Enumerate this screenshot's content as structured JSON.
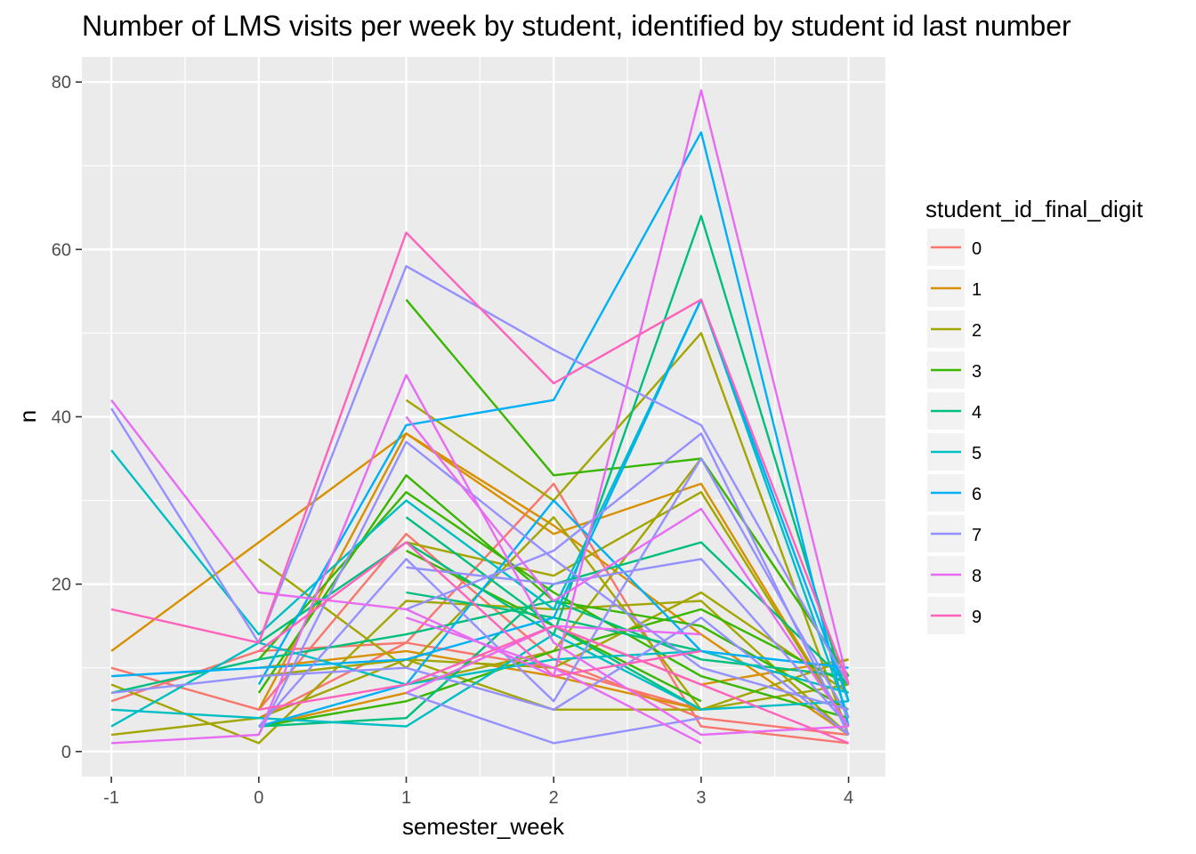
{
  "chart_data": {
    "type": "line",
    "title": "Number of LMS visits per week by student, identified by student id last number",
    "xlabel": "semester_week",
    "ylabel": "n",
    "xlim": [
      -1.2,
      4.25
    ],
    "ylim": [
      -3,
      83
    ],
    "x_ticks": [
      -1,
      0,
      1,
      2,
      3,
      4
    ],
    "y_ticks": [
      0,
      20,
      40,
      60,
      80
    ],
    "grid": true,
    "background": "#ebebeb",
    "legend": {
      "title": "student_id_final_digit",
      "position": "right"
    },
    "colors": {
      "0": "#F8766D",
      "1": "#D89000",
      "2": "#A3A500",
      "3": "#39B600",
      "4": "#00BF7D",
      "5": "#00BFC4",
      "6": "#00B0F6",
      "7": "#9590FF",
      "8": "#E76BF3",
      "9": "#FF62BC"
    },
    "series": [
      {
        "name": "0",
        "x": [
          -1,
          0,
          1,
          2,
          3,
          4
        ],
        "y": [
          10,
          5,
          26,
          11,
          4,
          2
        ]
      },
      {
        "name": "0",
        "x": [
          -1,
          0,
          1,
          2,
          3,
          4
        ],
        "y": [
          6,
          12,
          13,
          32,
          3,
          1
        ]
      },
      {
        "name": "0",
        "x": [
          0,
          1,
          2,
          3
        ],
        "y": [
          4,
          13,
          10,
          5
        ]
      },
      {
        "name": "1",
        "x": [
          -1,
          0,
          1,
          2,
          3,
          4
        ],
        "y": [
          12,
          25,
          38,
          26,
          32,
          3
        ]
      },
      {
        "name": "1",
        "x": [
          0,
          1,
          2,
          3,
          4
        ],
        "y": [
          5,
          38,
          27,
          14,
          2
        ]
      },
      {
        "name": "1",
        "x": [
          0,
          1,
          2,
          3,
          4
        ],
        "y": [
          3,
          7,
          15,
          8,
          11
        ]
      },
      {
        "name": "1",
        "x": [
          0,
          1,
          2,
          3
        ],
        "y": [
          10,
          12,
          9,
          5
        ]
      },
      {
        "name": "2",
        "x": [
          -1,
          0,
          1,
          2,
          3,
          4
        ],
        "y": [
          8,
          1,
          18,
          17,
          18,
          2
        ]
      },
      {
        "name": "2",
        "x": [
          -1,
          0,
          1,
          2,
          3,
          4
        ],
        "y": [
          2,
          4,
          11,
          5,
          5,
          11
        ]
      },
      {
        "name": "2",
        "x": [
          0,
          1,
          2,
          3,
          4
        ],
        "y": [
          23,
          10,
          28,
          5,
          8
        ]
      },
      {
        "name": "2",
        "x": [
          1,
          2,
          3,
          4
        ],
        "y": [
          42,
          30,
          50,
          2
        ]
      },
      {
        "name": "2",
        "x": [
          1,
          2,
          3,
          4
        ],
        "y": [
          25,
          21,
          31,
          3
        ]
      },
      {
        "name": "2",
        "x": [
          0,
          1,
          2,
          3,
          4
        ],
        "y": [
          9,
          11,
          10,
          19,
          7
        ]
      },
      {
        "name": "2",
        "x": [
          1,
          2,
          3,
          4
        ],
        "y": [
          8,
          12,
          35,
          9
        ]
      },
      {
        "name": "3",
        "x": [
          1,
          2,
          3,
          4
        ],
        "y": [
          54,
          33,
          35,
          9
        ]
      },
      {
        "name": "3",
        "x": [
          0,
          1,
          2,
          3,
          4
        ],
        "y": [
          7,
          33,
          18,
          15,
          5
        ]
      },
      {
        "name": "3",
        "x": [
          0,
          1,
          2,
          3,
          4
        ],
        "y": [
          11,
          31,
          19,
          9,
          4
        ]
      },
      {
        "name": "3",
        "x": [
          0,
          1,
          2,
          3,
          4
        ],
        "y": [
          3,
          6,
          12,
          17,
          8
        ]
      },
      {
        "name": "3",
        "x": [
          1,
          2,
          3
        ],
        "y": [
          24,
          15,
          6
        ]
      },
      {
        "name": "4",
        "x": [
          0,
          1,
          2,
          3,
          4
        ],
        "y": [
          3,
          4,
          20,
          25,
          8
        ]
      },
      {
        "name": "4",
        "x": [
          -1,
          0,
          1,
          2,
          3,
          4
        ],
        "y": [
          7,
          11,
          14,
          18,
          11,
          9
        ]
      },
      {
        "name": "4",
        "x": [
          1,
          2,
          3
        ],
        "y": [
          19,
          16,
          12
        ]
      },
      {
        "name": "4",
        "x": [
          1,
          2,
          3
        ],
        "y": [
          28,
          15,
          5
        ]
      },
      {
        "name": "4",
        "x": [
          0,
          1,
          2,
          3,
          4
        ],
        "y": [
          13,
          25,
          14,
          64,
          6
        ]
      },
      {
        "name": "5",
        "x": [
          -1,
          0,
          1,
          2,
          3,
          4
        ],
        "y": [
          36,
          14,
          30,
          17,
          54,
          4
        ]
      },
      {
        "name": "5",
        "x": [
          -1,
          0,
          1,
          2,
          3,
          4
        ],
        "y": [
          5,
          4,
          3,
          14,
          5,
          6
        ]
      },
      {
        "name": "5",
        "x": [
          -1,
          0,
          1,
          2,
          3,
          4
        ],
        "y": [
          3,
          13,
          8,
          11,
          12,
          7
        ]
      },
      {
        "name": "6",
        "x": [
          0,
          1,
          2,
          3,
          4
        ],
        "y": [
          8,
          39,
          42,
          74,
          3
        ]
      },
      {
        "name": "6",
        "x": [
          -1,
          0,
          1,
          2,
          3,
          4
        ],
        "y": [
          9,
          10,
          11,
          16,
          54,
          6
        ]
      },
      {
        "name": "6",
        "x": [
          0,
          1,
          2,
          3,
          4
        ],
        "y": [
          3,
          8,
          30,
          12,
          10
        ]
      },
      {
        "name": "7",
        "x": [
          -1,
          0,
          1,
          2,
          3,
          4
        ],
        "y": [
          41,
          13,
          58,
          48,
          39,
          8
        ]
      },
      {
        "name": "7",
        "x": [
          -1,
          0,
          1,
          2,
          3,
          4
        ],
        "y": [
          7,
          9,
          10,
          5,
          16,
          2
        ]
      },
      {
        "name": "7",
        "x": [
          0,
          1,
          2,
          3,
          4
        ],
        "y": [
          2,
          37,
          23,
          10,
          5
        ]
      },
      {
        "name": "7",
        "x": [
          0,
          1,
          2,
          3,
          4
        ],
        "y": [
          3,
          23,
          6,
          35,
          4
        ]
      },
      {
        "name": "7",
        "x": [
          1,
          2,
          3,
          4
        ],
        "y": [
          22,
          20,
          23,
          3
        ]
      },
      {
        "name": "7",
        "x": [
          1,
          2,
          3
        ],
        "y": [
          7,
          1,
          4
        ]
      },
      {
        "name": "7",
        "x": [
          1,
          2,
          3,
          4
        ],
        "y": [
          17,
          24,
          38,
          2
        ]
      },
      {
        "name": "8",
        "x": [
          -1,
          0,
          1,
          2,
          3,
          4
        ],
        "y": [
          42,
          19,
          17,
          9,
          79,
          8
        ]
      },
      {
        "name": "8",
        "x": [
          -1,
          0,
          1,
          2,
          3,
          4
        ],
        "y": [
          1,
          2,
          45,
          13,
          2,
          3
        ]
      },
      {
        "name": "8",
        "x": [
          1,
          2,
          3,
          4
        ],
        "y": [
          40,
          18,
          29,
          3
        ]
      },
      {
        "name": "8",
        "x": [
          1,
          2,
          3
        ],
        "y": [
          16,
          10,
          1
        ]
      },
      {
        "name": "8",
        "x": [
          1,
          2,
          3
        ],
        "y": [
          7,
          15,
          14
        ]
      },
      {
        "name": "9",
        "x": [
          -1,
          0,
          1,
          2,
          3,
          4
        ],
        "y": [
          17,
          13,
          62,
          44,
          54,
          8
        ]
      },
      {
        "name": "9",
        "x": [
          0,
          1,
          2,
          3
        ],
        "y": [
          12,
          25,
          9,
          12
        ]
      },
      {
        "name": "9",
        "x": [
          0,
          1,
          2,
          3,
          4
        ],
        "y": [
          5,
          8,
          15,
          8,
          1
        ]
      }
    ]
  },
  "legend_items": [
    {
      "label": "0",
      "color": "#F8766D"
    },
    {
      "label": "1",
      "color": "#D89000"
    },
    {
      "label": "2",
      "color": "#A3A500"
    },
    {
      "label": "3",
      "color": "#39B600"
    },
    {
      "label": "4",
      "color": "#00BF7D"
    },
    {
      "label": "5",
      "color": "#00BFC4"
    },
    {
      "label": "6",
      "color": "#00B0F6"
    },
    {
      "label": "7",
      "color": "#9590FF"
    },
    {
      "label": "8",
      "color": "#E76BF3"
    },
    {
      "label": "9",
      "color": "#FF62BC"
    }
  ]
}
